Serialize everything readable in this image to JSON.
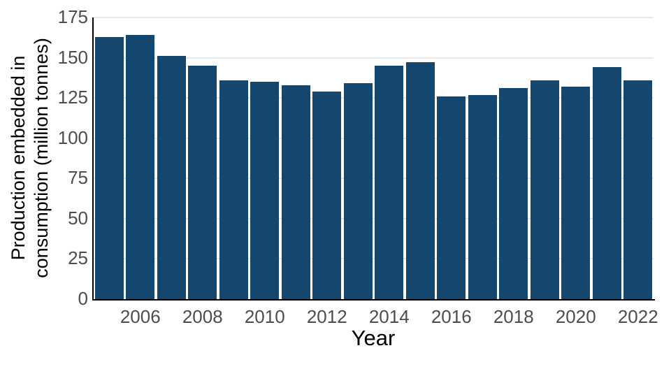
{
  "figure": {
    "background": "#ffffff"
  },
  "chart_data": {
    "type": "bar",
    "title": "",
    "xlabel": "Year",
    "ylabel": "Production embedded in consumption (million tonnes)",
    "ylabel_lines": [
      "Production embedded in",
      "consumption (million tonnes)"
    ],
    "categories": [
      2005,
      2006,
      2007,
      2008,
      2009,
      2010,
      2011,
      2012,
      2013,
      2014,
      2015,
      2016,
      2017,
      2018,
      2019,
      2020,
      2021,
      2022
    ],
    "values": [
      163,
      164,
      151,
      145,
      136,
      135,
      133,
      129,
      134,
      145,
      147,
      126,
      127,
      131,
      136,
      132,
      144,
      136
    ],
    "x_tick_labels": [
      "2006",
      "2008",
      "2010",
      "2012",
      "2014",
      "2016",
      "2018",
      "2020",
      "2022"
    ],
    "y_ticks": [
      0,
      25,
      50,
      75,
      100,
      125,
      150,
      175
    ],
    "ylim": [
      0,
      175
    ],
    "grid": "horizontal",
    "legend": "none",
    "bar_color": "#14466e",
    "grid_color": "#e7e7e7",
    "tick_label_color": "#4d4d4d",
    "axis_label_color": "#000000",
    "spine_color": "#000000"
  }
}
